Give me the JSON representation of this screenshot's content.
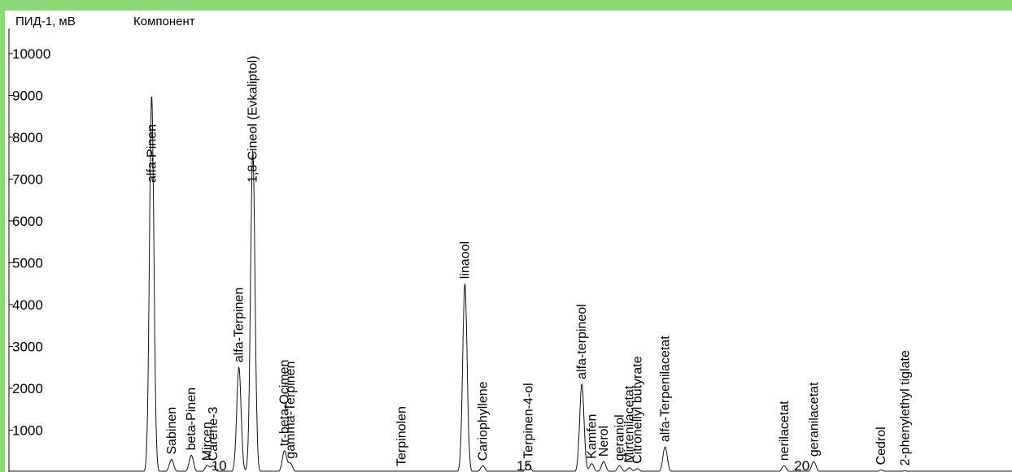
{
  "chart_data": {
    "type": "line",
    "y_axis_title": "ПИД-1, мВ",
    "component_header": "Компонент",
    "ylim": [
      0,
      10600
    ],
    "xlim": [
      0,
      25.3
    ],
    "y_ticks": [
      1000,
      2000,
      3000,
      4000,
      5000,
      6000,
      7000,
      8000,
      9000,
      10000
    ],
    "grid": false,
    "peak_numbers": [
      {
        "label": "10",
        "x": 5.3
      },
      {
        "label": "15",
        "x": 13.0
      },
      {
        "label": "20",
        "x": 20.0
      }
    ],
    "peaks": [
      {
        "name": "alfa-Pinen",
        "rt": 3.6,
        "height": 9000
      },
      {
        "name": "Sabinen",
        "rt": 4.1,
        "height": 300
      },
      {
        "name": "beta-Pinen",
        "rt": 4.6,
        "height": 400
      },
      {
        "name": "Mircen",
        "rt": 5.0,
        "height": 150
      },
      {
        "name": "Carene-3",
        "rt": 5.15,
        "height": 150
      },
      {
        "name": "alfa-Terpinen",
        "rt": 5.8,
        "height": 2500
      },
      {
        "name": "1,8-Cineol (Evkaliptol)",
        "rt": 6.15,
        "height": 7700
      },
      {
        "name": "tr-beta-Ocimen",
        "rt": 6.95,
        "height": 500
      },
      {
        "name": "gamma-Terpinen",
        "rt": 7.1,
        "height": 200
      },
      {
        "name": "Terpinolen",
        "rt": 9.9,
        "height": 20
      },
      {
        "name": "linaool",
        "rt": 11.5,
        "height": 4500
      },
      {
        "name": "Cariophyllene",
        "rt": 11.95,
        "height": 150
      },
      {
        "name": "Terpinen-4-ol",
        "rt": 13.1,
        "height": 200
      },
      {
        "name": "alfa-terpineol",
        "rt": 14.45,
        "height": 2100
      },
      {
        "name": "Kamfen",
        "rt": 14.7,
        "height": 200
      },
      {
        "name": "Nerol",
        "rt": 15.0,
        "height": 250
      },
      {
        "name": "geraniol",
        "rt": 15.4,
        "height": 150
      },
      {
        "name": "Mirtenilacetat",
        "rt": 15.65,
        "height": 100
      },
      {
        "name": "Citronellyl butyrate",
        "rt": 15.85,
        "height": 80
      },
      {
        "name": "alfa-Terpenilacetat",
        "rt": 16.55,
        "height": 600
      },
      {
        "name": "nerilacetat",
        "rt": 19.55,
        "height": 150
      },
      {
        "name": "geranilacetat",
        "rt": 20.3,
        "height": 250
      },
      {
        "name": "Cedrol",
        "rt": 22.0,
        "height": 50
      },
      {
        "name": "2-phenylethyl tiglate",
        "rt": 22.6,
        "height": 30
      }
    ]
  }
}
